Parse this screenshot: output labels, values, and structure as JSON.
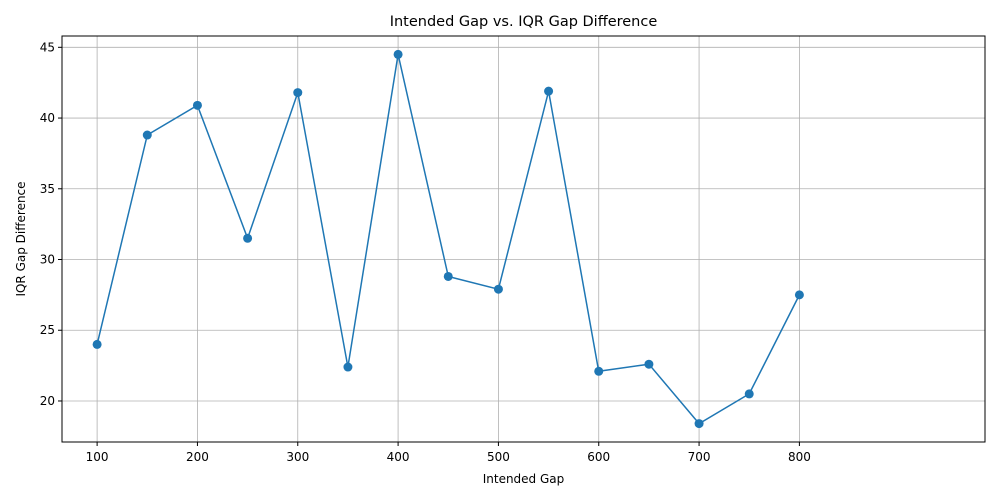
{
  "chart_data": {
    "type": "line",
    "title": "Intended Gap vs. IQR Gap Difference",
    "xlabel": "Intended Gap",
    "ylabel": "IQR Gap Difference",
    "x": [
      100,
      150,
      200,
      250,
      300,
      350,
      400,
      450,
      500,
      550,
      600,
      650,
      700,
      750,
      800
    ],
    "series": [
      {
        "values": [
          24.0,
          38.8,
          40.9,
          31.5,
          41.8,
          22.4,
          44.5,
          28.8,
          27.9,
          41.9,
          22.1,
          22.6,
          18.4,
          20.5,
          27.5
        ],
        "color": "#1f77b4",
        "marker": "circle"
      }
    ],
    "xticks": [
      100,
      200,
      300,
      400,
      500,
      600,
      700,
      800
    ],
    "yticks": [
      20,
      25,
      30,
      35,
      40,
      45
    ],
    "xlim": [
      65,
      985
    ],
    "ylim": [
      17.1,
      45.8
    ],
    "grid": true
  }
}
